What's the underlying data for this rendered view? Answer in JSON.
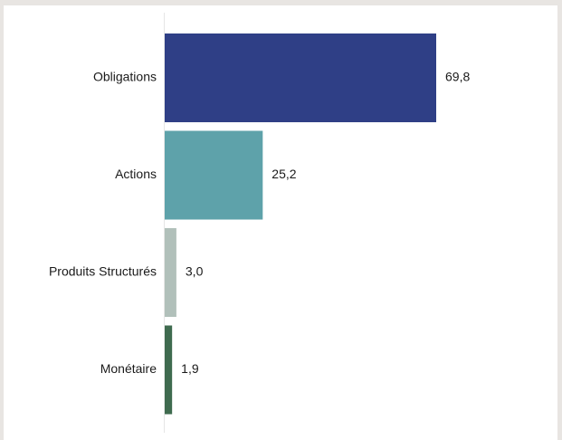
{
  "chart_data": {
    "type": "bar",
    "orientation": "horizontal",
    "categories": [
      "Obligations",
      "Actions",
      "Produits Structurés",
      "Monétaire"
    ],
    "values": [
      69.8,
      25.2,
      3.0,
      1.9
    ],
    "value_labels": [
      "69,8",
      "25,2",
      "3,0",
      "1,9"
    ],
    "colors": [
      "#2f3f86",
      "#5ea2aa",
      "#b1c0ba",
      "#3f6b4f"
    ],
    "title": "",
    "xlabel": "",
    "ylabel": "",
    "xlim": [
      0,
      100
    ],
    "grid": false,
    "legend": "none"
  }
}
